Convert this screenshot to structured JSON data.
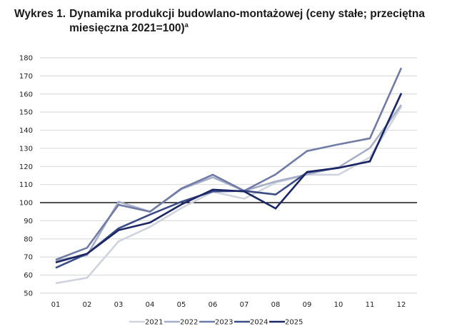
{
  "title": {
    "prefix": "Wykres 1.",
    "text": "Dynamika produkcji budowlano-montażowej (ceny stałe; przeciętna miesięczna 2021=100)",
    "superscript": "a"
  },
  "chart_data": {
    "type": "line",
    "title": "Wykres 1. Dynamika produkcji budowlano-montażowej (ceny stałe; przeciętna miesięczna 2021=100)a",
    "xlabel": "",
    "ylabel": "",
    "categories": [
      "01",
      "02",
      "03",
      "04",
      "05",
      "06",
      "07",
      "08",
      "09",
      "10",
      "11",
      "12"
    ],
    "ylim": [
      50,
      180
    ],
    "yticks": [
      50,
      60,
      70,
      80,
      90,
      100,
      110,
      120,
      130,
      140,
      150,
      160,
      170,
      180
    ],
    "grid": true,
    "reference_line": 100,
    "legend_position": "bottom",
    "series": [
      {
        "name": "2021",
        "color": "#cfd3de",
        "values": [
          55.5,
          58.5,
          78.6,
          86.6,
          97.0,
          106.0,
          102.2,
          111.0,
          115.4,
          115.4,
          125.0,
          153.0
        ]
      },
      {
        "name": "2022",
        "color": "#a7aec8",
        "values": [
          68.0,
          71.0,
          100.5,
          95.0,
          107.5,
          114.0,
          106.5,
          111.7,
          115.6,
          119.5,
          130.2,
          154.0
        ]
      },
      {
        "name": "2023",
        "color": "#717ca6",
        "values": [
          68.5,
          75.1,
          98.8,
          95.0,
          107.8,
          115.4,
          106.5,
          115.6,
          128.5,
          132.2,
          135.5,
          174.4
        ]
      },
      {
        "name": "2024",
        "color": "#3c4c86",
        "values": [
          64.0,
          71.8,
          85.8,
          93.4,
          100.5,
          106.2,
          106.5,
          104.5,
          116.7,
          119.2,
          122.8,
          160.4
        ]
      },
      {
        "name": "2025",
        "color": "#1b2865",
        "values": [
          67.0,
          71.8,
          84.8,
          89.0,
          99.0,
          107.2,
          106.2,
          96.8,
          117.0,
          119.2,
          122.8,
          160.4
        ]
      }
    ]
  }
}
